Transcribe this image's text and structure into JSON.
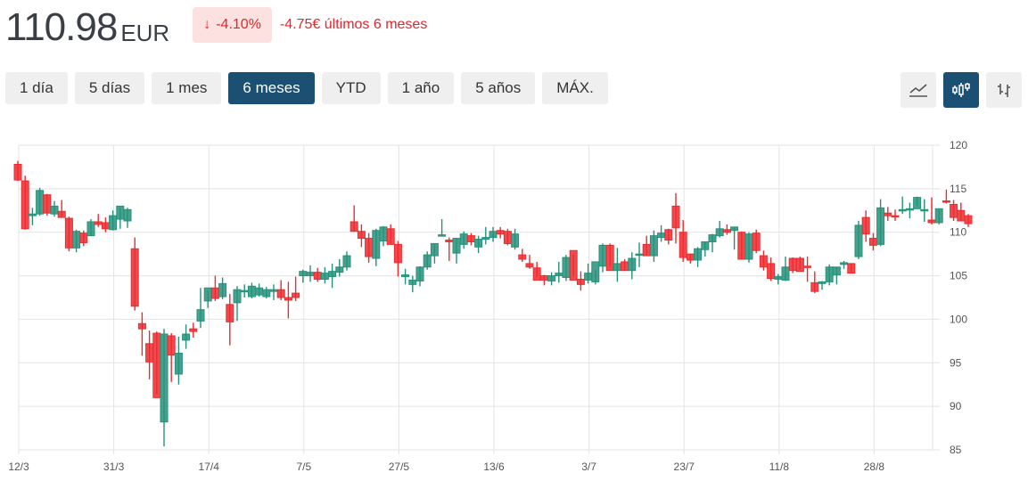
{
  "header": {
    "price": "110.98",
    "currency": "EUR",
    "change_pct": "-4.10%",
    "change_arrow": "↓",
    "change_abs": "-4.75€ últimos 6 meses",
    "negative_color": "#e4262b",
    "badge_bg": "#fde0e0"
  },
  "ranges": [
    {
      "label": "1 día",
      "active": false
    },
    {
      "label": "5 días",
      "active": false
    },
    {
      "label": "1 mes",
      "active": false
    },
    {
      "label": "6 meses",
      "active": true
    },
    {
      "label": "YTD",
      "active": false
    },
    {
      "label": "1 año",
      "active": false
    },
    {
      "label": "5 años",
      "active": false
    },
    {
      "label": "MÁX.",
      "active": false
    }
  ],
  "tools": [
    {
      "name": "line-chart-icon",
      "active": false
    },
    {
      "name": "candlestick-chart-icon",
      "active": true
    },
    {
      "name": "ohlc-chart-icon",
      "active": false
    }
  ],
  "colors": {
    "up": "#26917a",
    "down": "#ee2a2f",
    "accent": "#1c5073",
    "grid": "#e3e3e3"
  },
  "chart_data": {
    "type": "candlestick",
    "title": "",
    "xlabel": "",
    "ylabel": "",
    "ylim": [
      85,
      120
    ],
    "yticks": [
      85,
      90,
      95,
      100,
      105,
      110,
      115,
      120
    ],
    "xticks": [
      "12/3",
      "31/3",
      "17/4",
      "7/5",
      "27/5",
      "13/6",
      "3/7",
      "23/7",
      "11/8",
      "28/8"
    ],
    "xtick_index": [
      0,
      13,
      26,
      39,
      52,
      65,
      78,
      91,
      104,
      117
    ],
    "grid": true,
    "y_axis_position": "right",
    "ohlc": [
      [
        117.8,
        118.2,
        115.9,
        116.0
      ],
      [
        115.9,
        116.5,
        110.3,
        110.4
      ],
      [
        111.9,
        112.8,
        110.8,
        112.1
      ],
      [
        112.1,
        115.1,
        111.9,
        114.8
      ],
      [
        114.3,
        114.4,
        111.9,
        112.2
      ],
      [
        112.1,
        113.6,
        111.8,
        113.0
      ],
      [
        112.4,
        113.7,
        111.8,
        111.7
      ],
      [
        111.6,
        111.8,
        107.8,
        108.2
      ],
      [
        108.2,
        110.3,
        107.7,
        110.1
      ],
      [
        109.9,
        110.2,
        108.4,
        108.8
      ],
      [
        109.6,
        111.5,
        109.6,
        111.2
      ],
      [
        111.2,
        112.1,
        110.6,
        110.9
      ],
      [
        111.1,
        111.7,
        110.0,
        110.4
      ],
      [
        110.3,
        112.5,
        110.2,
        111.9
      ],
      [
        111.5,
        112.8,
        110.4,
        113.0
      ],
      [
        111.3,
        112.8,
        110.5,
        112.6
      ],
      [
        108.1,
        109.4,
        101.0,
        101.5
      ],
      [
        99.5,
        100.8,
        95.8,
        98.9
      ],
      [
        97.2,
        98.7,
        93.1,
        95.1
      ],
      [
        98.4,
        98.6,
        91.4,
        91.0
      ],
      [
        88.2,
        98.9,
        85.4,
        98.3
      ],
      [
        98.1,
        98.4,
        92.8,
        95.9
      ],
      [
        93.7,
        98.0,
        92.5,
        96.1
      ],
      [
        97.6,
        99.4,
        96.6,
        98.3
      ],
      [
        98.9,
        99.6,
        97.9,
        98.6
      ],
      [
        99.8,
        103.6,
        99.0,
        101.1
      ],
      [
        102.1,
        103.3,
        101.3,
        103.6
      ],
      [
        103.6,
        105.0,
        102.1,
        102.4
      ],
      [
        102.6,
        104.8,
        102.3,
        104.1
      ],
      [
        101.7,
        102.9,
        97.0,
        99.7
      ],
      [
        101.9,
        103.8,
        99.8,
        103.4
      ],
      [
        103.2,
        104.0,
        102.5,
        103.3
      ],
      [
        102.6,
        104.2,
        102.4,
        103.8
      ],
      [
        102.8,
        104.1,
        102.6,
        103.6
      ],
      [
        102.6,
        103.7,
        102.4,
        103.4
      ],
      [
        103.2,
        104.0,
        102.2,
        103.4
      ],
      [
        103.4,
        104.5,
        102.2,
        102.5
      ],
      [
        102.5,
        104.3,
        100.1,
        102.2
      ],
      [
        103.0,
        104.9,
        102.1,
        102.5
      ],
      [
        105.0,
        105.7,
        104.2,
        105.5
      ],
      [
        105.0,
        106.2,
        104.3,
        105.4
      ],
      [
        105.4,
        105.9,
        104.3,
        104.6
      ],
      [
        104.6,
        106.0,
        104.1,
        105.3
      ],
      [
        104.9,
        106.4,
        103.6,
        105.5
      ],
      [
        105.4,
        106.9,
        104.9,
        106.0
      ],
      [
        106.0,
        107.8,
        105.6,
        107.3
      ],
      [
        111.2,
        113.1,
        110.2,
        110.1
      ],
      [
        110.1,
        110.9,
        108.3,
        109.3
      ],
      [
        109.3,
        109.9,
        106.5,
        107.2
      ],
      [
        107.0,
        110.4,
        106.1,
        110.2
      ],
      [
        109.0,
        110.7,
        108.4,
        110.6
      ],
      [
        110.4,
        110.9,
        108.6,
        108.6
      ],
      [
        108.6,
        109.0,
        104.9,
        106.5
      ],
      [
        104.9,
        105.8,
        104.0,
        105.1
      ],
      [
        104.0,
        105.0,
        103.1,
        104.5
      ],
      [
        104.4,
        106.1,
        103.8,
        106.0
      ],
      [
        106.0,
        107.8,
        105.7,
        107.4
      ],
      [
        107.3,
        108.6,
        106.4,
        108.7
      ],
      [
        109.6,
        111.5,
        109.5,
        109.7
      ],
      [
        109.1,
        109.4,
        106.7,
        108.9
      ],
      [
        107.6,
        109.3,
        106.4,
        109.3
      ],
      [
        108.6,
        110.1,
        108.1,
        109.8
      ],
      [
        109.6,
        109.9,
        108.5,
        108.9
      ],
      [
        108.3,
        109.6,
        107.6,
        109.2
      ],
      [
        109.2,
        110.6,
        108.6,
        109.4
      ],
      [
        109.4,
        110.6,
        108.9,
        110.1
      ],
      [
        110.2,
        110.6,
        109.3,
        109.8
      ],
      [
        110.1,
        110.4,
        108.5,
        108.7
      ],
      [
        108.3,
        110.4,
        108.0,
        109.8
      ],
      [
        107.4,
        108.1,
        106.6,
        106.9
      ],
      [
        106.4,
        107.4,
        105.8,
        106.0
      ],
      [
        105.9,
        106.6,
        104.8,
        104.5
      ],
      [
        105.0,
        105.1,
        103.9,
        104.5
      ],
      [
        104.4,
        105.4,
        103.9,
        105.0
      ],
      [
        105.0,
        106.6,
        104.2,
        105.3
      ],
      [
        104.8,
        107.4,
        104.4,
        107.1
      ],
      [
        107.9,
        107.5,
        105.0,
        104.5
      ],
      [
        104.6,
        105.5,
        103.3,
        104.0
      ],
      [
        104.5,
        106.4,
        104.1,
        105.3
      ],
      [
        104.3,
        105.7,
        104.0,
        106.6
      ],
      [
        106.1,
        108.7,
        105.4,
        108.5
      ],
      [
        108.5,
        108.7,
        106.1,
        105.6
      ],
      [
        105.6,
        108.2,
        104.3,
        106.4
      ],
      [
        106.6,
        106.9,
        105.6,
        105.6
      ],
      [
        105.6,
        107.7,
        104.6,
        107.0
      ],
      [
        107.4,
        108.8,
        106.0,
        107.5
      ],
      [
        108.6,
        109.6,
        107.4,
        107.3
      ],
      [
        107.3,
        110.2,
        106.6,
        109.6
      ],
      [
        109.4,
        110.8,
        108.9,
        109.9
      ],
      [
        110.3,
        110.4,
        108.6,
        109.1
      ],
      [
        113.0,
        114.5,
        108.7,
        110.5
      ],
      [
        110.0,
        111.4,
        106.6,
        107.1
      ],
      [
        107.5,
        107.5,
        106.4,
        106.8
      ],
      [
        106.8,
        108.3,
        106.0,
        108.1
      ],
      [
        108.0,
        108.9,
        107.2,
        108.9
      ],
      [
        108.9,
        109.8,
        107.7,
        109.7
      ],
      [
        109.6,
        111.3,
        109.4,
        110.4
      ],
      [
        110.3,
        110.9,
        109.7,
        110.0
      ],
      [
        110.2,
        110.6,
        108.0,
        110.6
      ],
      [
        110.0,
        110.1,
        106.9,
        106.9
      ],
      [
        106.9,
        110.0,
        106.5,
        109.8
      ],
      [
        109.9,
        110.3,
        107.6,
        107.9
      ],
      [
        107.3,
        107.9,
        105.6,
        106.0
      ],
      [
        106.4,
        107.1,
        104.4,
        104.7
      ],
      [
        104.6,
        105.2,
        104.0,
        104.9
      ],
      [
        104.5,
        107.2,
        104.4,
        106.0
      ],
      [
        107.0,
        107.1,
        105.3,
        105.6
      ],
      [
        107.0,
        107.2,
        105.7,
        105.5
      ],
      [
        106.1,
        107.2,
        104.3,
        106.0
      ],
      [
        104.2,
        105.5,
        103.0,
        103.2
      ],
      [
        104.1,
        104.4,
        103.4,
        104.3
      ],
      [
        104.3,
        106.3,
        103.9,
        106.0
      ],
      [
        105.1,
        106.0,
        104.0,
        106.0
      ],
      [
        106.3,
        106.7,
        105.8,
        106.5
      ],
      [
        106.4,
        106.4,
        105.3,
        105.3
      ],
      [
        107.2,
        111.3,
        106.9,
        110.8
      ],
      [
        111.7,
        112.5,
        108.9,
        109.8
      ],
      [
        109.3,
        109.9,
        107.9,
        108.5
      ],
      [
        108.6,
        113.8,
        108.4,
        112.8
      ],
      [
        112.2,
        112.9,
        111.3,
        111.9
      ],
      [
        111.9,
        112.6,
        111.3,
        111.8
      ],
      [
        112.5,
        114.1,
        112.1,
        112.6
      ],
      [
        112.7,
        113.4,
        111.6,
        112.7
      ],
      [
        112.7,
        114.1,
        113.0,
        114.0
      ],
      [
        112.6,
        113.8,
        111.2,
        112.6
      ],
      [
        111.4,
        114.0,
        110.9,
        111.1
      ],
      [
        111.1,
        112.6,
        110.9,
        112.7
      ],
      [
        113.6,
        114.9,
        113.3,
        113.5
      ],
      [
        113.2,
        113.7,
        111.3,
        111.7
      ],
      [
        112.5,
        113.4,
        111.3,
        111.3
      ],
      [
        111.9,
        112.1,
        110.6,
        110.98
      ]
    ]
  }
}
